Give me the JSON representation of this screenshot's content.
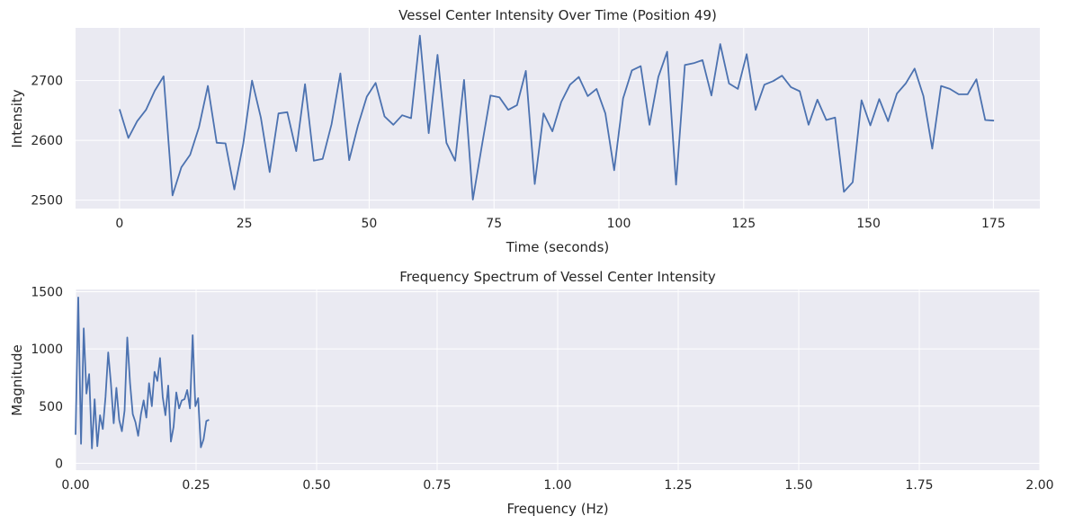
{
  "chart_data": [
    {
      "type": "line",
      "title": "Vessel Center Intensity Over Time (Position 49)",
      "xlabel": "Time (seconds)",
      "ylabel": "Intensity",
      "xlim": [
        -8.8,
        184.3
      ],
      "ylim": [
        2486,
        2788
      ],
      "xticks": [
        0,
        25,
        50,
        75,
        100,
        125,
        150,
        175
      ],
      "xtick_labels": [
        "0",
        "25",
        "50",
        "75",
        "100",
        "125",
        "150",
        "175"
      ],
      "yticks": [
        2500,
        2600,
        2700
      ],
      "ytick_labels": [
        "2500",
        "2600",
        "2700"
      ],
      "grid": true,
      "color": "#4c72b0",
      "series": [
        {
          "x": [
            0.0,
            1.77,
            3.54,
            5.31,
            7.07,
            8.84,
            10.61,
            12.38,
            14.15,
            15.92,
            17.69,
            19.46,
            21.23,
            23.0,
            24.77,
            26.54,
            28.31,
            30.07,
            31.84,
            33.61,
            35.38,
            37.15,
            38.92,
            40.69,
            42.46,
            44.23,
            46.0,
            47.76,
            49.53,
            51.3,
            53.07,
            54.84,
            56.61,
            58.38,
            60.15,
            61.92,
            63.69,
            65.46,
            67.22,
            68.99,
            70.76,
            72.53,
            74.3,
            76.07,
            77.84,
            79.61,
            81.38,
            83.15,
            84.92,
            86.68,
            88.45,
            90.22,
            91.99,
            93.76,
            95.53,
            97.3,
            99.07,
            100.84,
            102.61,
            104.37,
            106.14,
            107.91,
            109.68,
            111.45,
            113.22,
            114.99,
            116.76,
            118.53,
            120.3,
            122.06,
            123.83,
            125.6,
            127.37,
            129.14,
            130.91,
            132.68,
            134.45,
            136.22,
            137.99,
            139.76,
            141.53,
            143.3,
            145.06,
            146.83,
            148.6,
            150.37,
            152.14,
            153.91,
            155.68,
            157.45,
            159.22,
            160.99,
            162.75,
            164.52,
            166.29,
            168.06,
            169.83,
            171.6,
            173.37,
            175.14
          ],
          "values": [
            2652,
            2604,
            2632,
            2651,
            2683,
            2707,
            2508,
            2555,
            2576,
            2622,
            2691,
            2596,
            2595,
            2518,
            2594,
            2700,
            2638,
            2547,
            2645,
            2647,
            2582,
            2694,
            2566,
            2569,
            2627,
            2712,
            2567,
            2625,
            2673,
            2696,
            2640,
            2626,
            2642,
            2637,
            2775,
            2612,
            2743,
            2596,
            2566,
            2701,
            2501,
            2589,
            2675,
            2672,
            2651,
            2659,
            2716,
            2527,
            2645,
            2615,
            2664,
            2693,
            2706,
            2674,
            2686,
            2645,
            2550,
            2670,
            2717,
            2724,
            2626,
            2706,
            2748,
            2526,
            2726,
            2729,
            2734,
            2675,
            2761,
            2695,
            2686,
            2744,
            2651,
            2693,
            2699,
            2708,
            2689,
            2682,
            2626,
            2668,
            2634,
            2638,
            2514,
            2530,
            2667,
            2625,
            2669,
            2632,
            2678,
            2695,
            2720,
            2674,
            2586,
            2691,
            2686,
            2677,
            2677,
            2702,
            2634,
            2633
          ]
        }
      ]
    },
    {
      "type": "line",
      "title": "Frequency Spectrum of Vessel Center Intensity",
      "xlabel": "Frequency (Hz)",
      "ylabel": "Magnitude",
      "xlim": [
        0,
        2.0
      ],
      "ylim": [
        -60,
        1520
      ],
      "xticks": [
        0.0,
        0.25,
        0.5,
        0.75,
        1.0,
        1.25,
        1.5,
        1.75,
        2.0
      ],
      "xtick_labels": [
        "0.00",
        "0.25",
        "0.50",
        "0.75",
        "1.00",
        "1.25",
        "1.50",
        "1.75",
        "2.00"
      ],
      "yticks": [
        0,
        500,
        1000,
        1500
      ],
      "ytick_labels": [
        "0",
        "500",
        "1000",
        "1500"
      ],
      "grid": true,
      "color": "#4c72b0",
      "series": [
        {
          "x": [
            0.0,
            0.0056,
            0.0113,
            0.0169,
            0.0226,
            0.0282,
            0.0339,
            0.0395,
            0.0452,
            0.0508,
            0.0565,
            0.0621,
            0.0678,
            0.0734,
            0.0791,
            0.0847,
            0.0904,
            0.096,
            0.1017,
            0.1073,
            0.113,
            0.1186,
            0.1243,
            0.1299,
            0.1356,
            0.1412,
            0.1469,
            0.1525,
            0.1582,
            0.1638,
            0.1695,
            0.1751,
            0.1808,
            0.1864,
            0.1921,
            0.1977,
            0.2034,
            0.209,
            0.2147,
            0.2203,
            0.226,
            0.2316,
            0.2373,
            0.2429,
            0.2486,
            0.2542,
            0.2599,
            0.2655,
            0.2712,
            0.2768
          ],
          "values": [
            250,
            1450,
            170,
            1180,
            610,
            780,
            130,
            560,
            150,
            420,
            300,
            580,
            970,
            700,
            350,
            660,
            380,
            280,
            460,
            1100,
            700,
            430,
            360,
            240,
            430,
            550,
            400,
            700,
            500,
            800,
            720,
            920,
            580,
            420,
            680,
            190,
            320,
            620,
            480,
            550,
            560,
            640,
            480,
            1120,
            500,
            570,
            140,
            210,
            370,
            380
          ]
        }
      ]
    }
  ]
}
